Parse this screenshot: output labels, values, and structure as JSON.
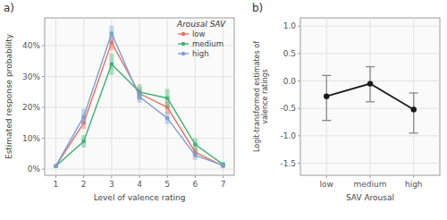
{
  "chart_data": [
    {
      "type": "line",
      "title": "a)",
      "x_label": "Level of valence rating",
      "y_label": "Estimated response probability",
      "x": [
        1,
        2,
        3,
        4,
        5,
        6,
        7
      ],
      "xlim": [
        0.6,
        7.4
      ],
      "xticks": [
        1,
        2,
        3,
        4,
        5,
        6,
        7
      ],
      "ylim": [
        -0.02,
        0.49
      ],
      "yticks": [
        {
          "value": 0.0,
          "label": "0%"
        },
        {
          "value": 0.1,
          "label": "10%"
        },
        {
          "value": 0.2,
          "label": "20%"
        },
        {
          "value": 0.3,
          "label": "30%"
        },
        {
          "value": 0.4,
          "label": "40%"
        }
      ],
      "grid": true,
      "legend": "right",
      "legend_title": "Arousal SAV",
      "marker": "circle",
      "line_style": "solid",
      "series": [
        {
          "name": "low",
          "color": "#E87060",
          "values": [
            0.01,
            0.15,
            0.41,
            0.245,
            0.2,
            0.055,
            0.01
          ],
          "errors": [
            0.005,
            0.02,
            0.025,
            0.02,
            0.02,
            0.015,
            0.005
          ]
        },
        {
          "name": "medium",
          "color": "#3CB371",
          "values": [
            0.01,
            0.09,
            0.34,
            0.25,
            0.23,
            0.08,
            0.015
          ],
          "errors": [
            0.005,
            0.02,
            0.035,
            0.025,
            0.03,
            0.02,
            0.008
          ]
        },
        {
          "name": "high",
          "color": "#7B9FD4",
          "values": [
            0.01,
            0.17,
            0.44,
            0.235,
            0.165,
            0.045,
            0.012
          ],
          "errors": [
            0.005,
            0.025,
            0.025,
            0.02,
            0.02,
            0.015,
            0.005
          ]
        }
      ]
    },
    {
      "type": "line",
      "title": "b)",
      "x_label": "SAV Arousal",
      "y_label": "Logit-transformed estimates of\nvalence ratings",
      "categories": [
        "low",
        "medium",
        "high"
      ],
      "values": [
        -0.28,
        -0.05,
        -0.52
      ],
      "lower": [
        -0.72,
        -0.38,
        -0.95
      ],
      "upper": [
        0.1,
        0.26,
        -0.22
      ],
      "color": "#1a1a1a",
      "ylim": [
        -1.72,
        1.15
      ],
      "yticks": [
        -1.5,
        {
          "value": -1.0,
          "label": "-1.0"
        },
        -0.5,
        {
          "value": 0.0,
          "label": "0.0"
        },
        0.5,
        {
          "value": 1.0,
          "label": "1.0"
        }
      ],
      "grid": true,
      "marker": "circle",
      "line_style": "solid"
    }
  ]
}
